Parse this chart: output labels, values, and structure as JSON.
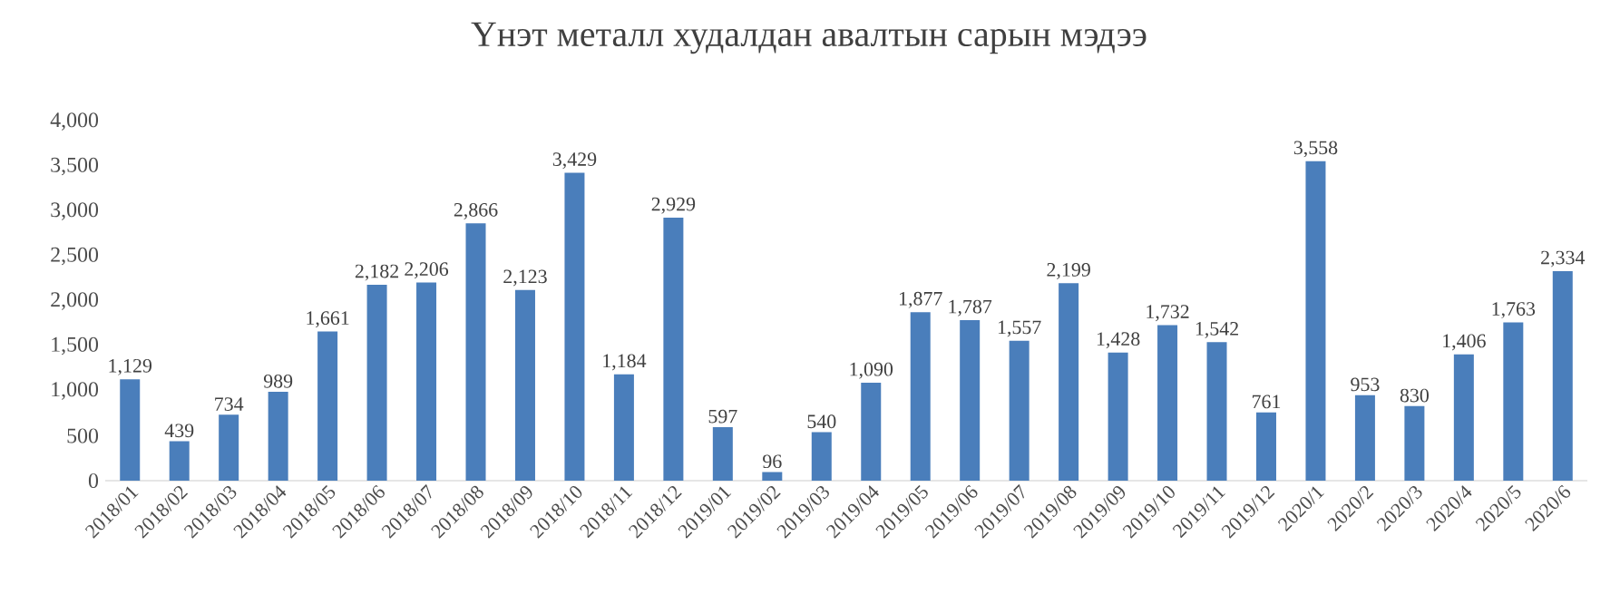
{
  "chart_data": {
    "type": "bar",
    "title": "Үнэт металл худалдан авалтын сарын мэдээ",
    "categories": [
      "2018/01",
      "2018/02",
      "2018/03",
      "2018/04",
      "2018/05",
      "2018/06",
      "2018/07",
      "2018/08",
      "2018/09",
      "2018/10",
      "2018/11",
      "2018/12",
      "2019/01",
      "2019/02",
      "2019/03",
      "2019/04",
      "2019/05",
      "2019/06",
      "2019/07",
      "2019/08",
      "2019/09",
      "2019/10",
      "2019/11",
      "2019/12",
      "2020/1",
      "2020/2",
      "2020/3",
      "2020/4",
      "2020/5",
      "2020/6"
    ],
    "values": [
      1129,
      439,
      734,
      989,
      1661,
      2182,
      2206,
      2866,
      2123,
      3429,
      1184,
      2929,
      597,
      96,
      540,
      1090,
      1877,
      1787,
      1557,
      2199,
      1428,
      1732,
      1542,
      761,
      3558,
      953,
      830,
      1406,
      1763,
      2334
    ],
    "value_labels": [
      "1,129",
      "439",
      "734",
      "989",
      "1,661",
      "2,182",
      "2,206",
      "2,866",
      "2,123",
      "3,429",
      "1,184",
      "2,929",
      "597",
      "96",
      "540",
      "1,090",
      "1,877",
      "1,787",
      "1,557",
      "2,199",
      "1,428",
      "1,732",
      "1,542",
      "761",
      "3,558",
      "953",
      "830",
      "1,406",
      "1,763",
      "2,334"
    ],
    "color": "#4a7ebb",
    "ylim": [
      0,
      4000
    ],
    "yticks": [
      0,
      500,
      {
        "value": 1000,
        "label": "1,000"
      },
      {
        "value": 1500,
        "label": "1,500"
      },
      {
        "value": 2000,
        "label": "2,000"
      },
      {
        "value": 2500,
        "label": "2,500"
      },
      {
        "value": 3000,
        "label": "3,000"
      },
      {
        "value": 3500,
        "label": "3,500"
      },
      {
        "value": 4000,
        "label": "4,000"
      }
    ],
    "orientation": "vertical"
  }
}
